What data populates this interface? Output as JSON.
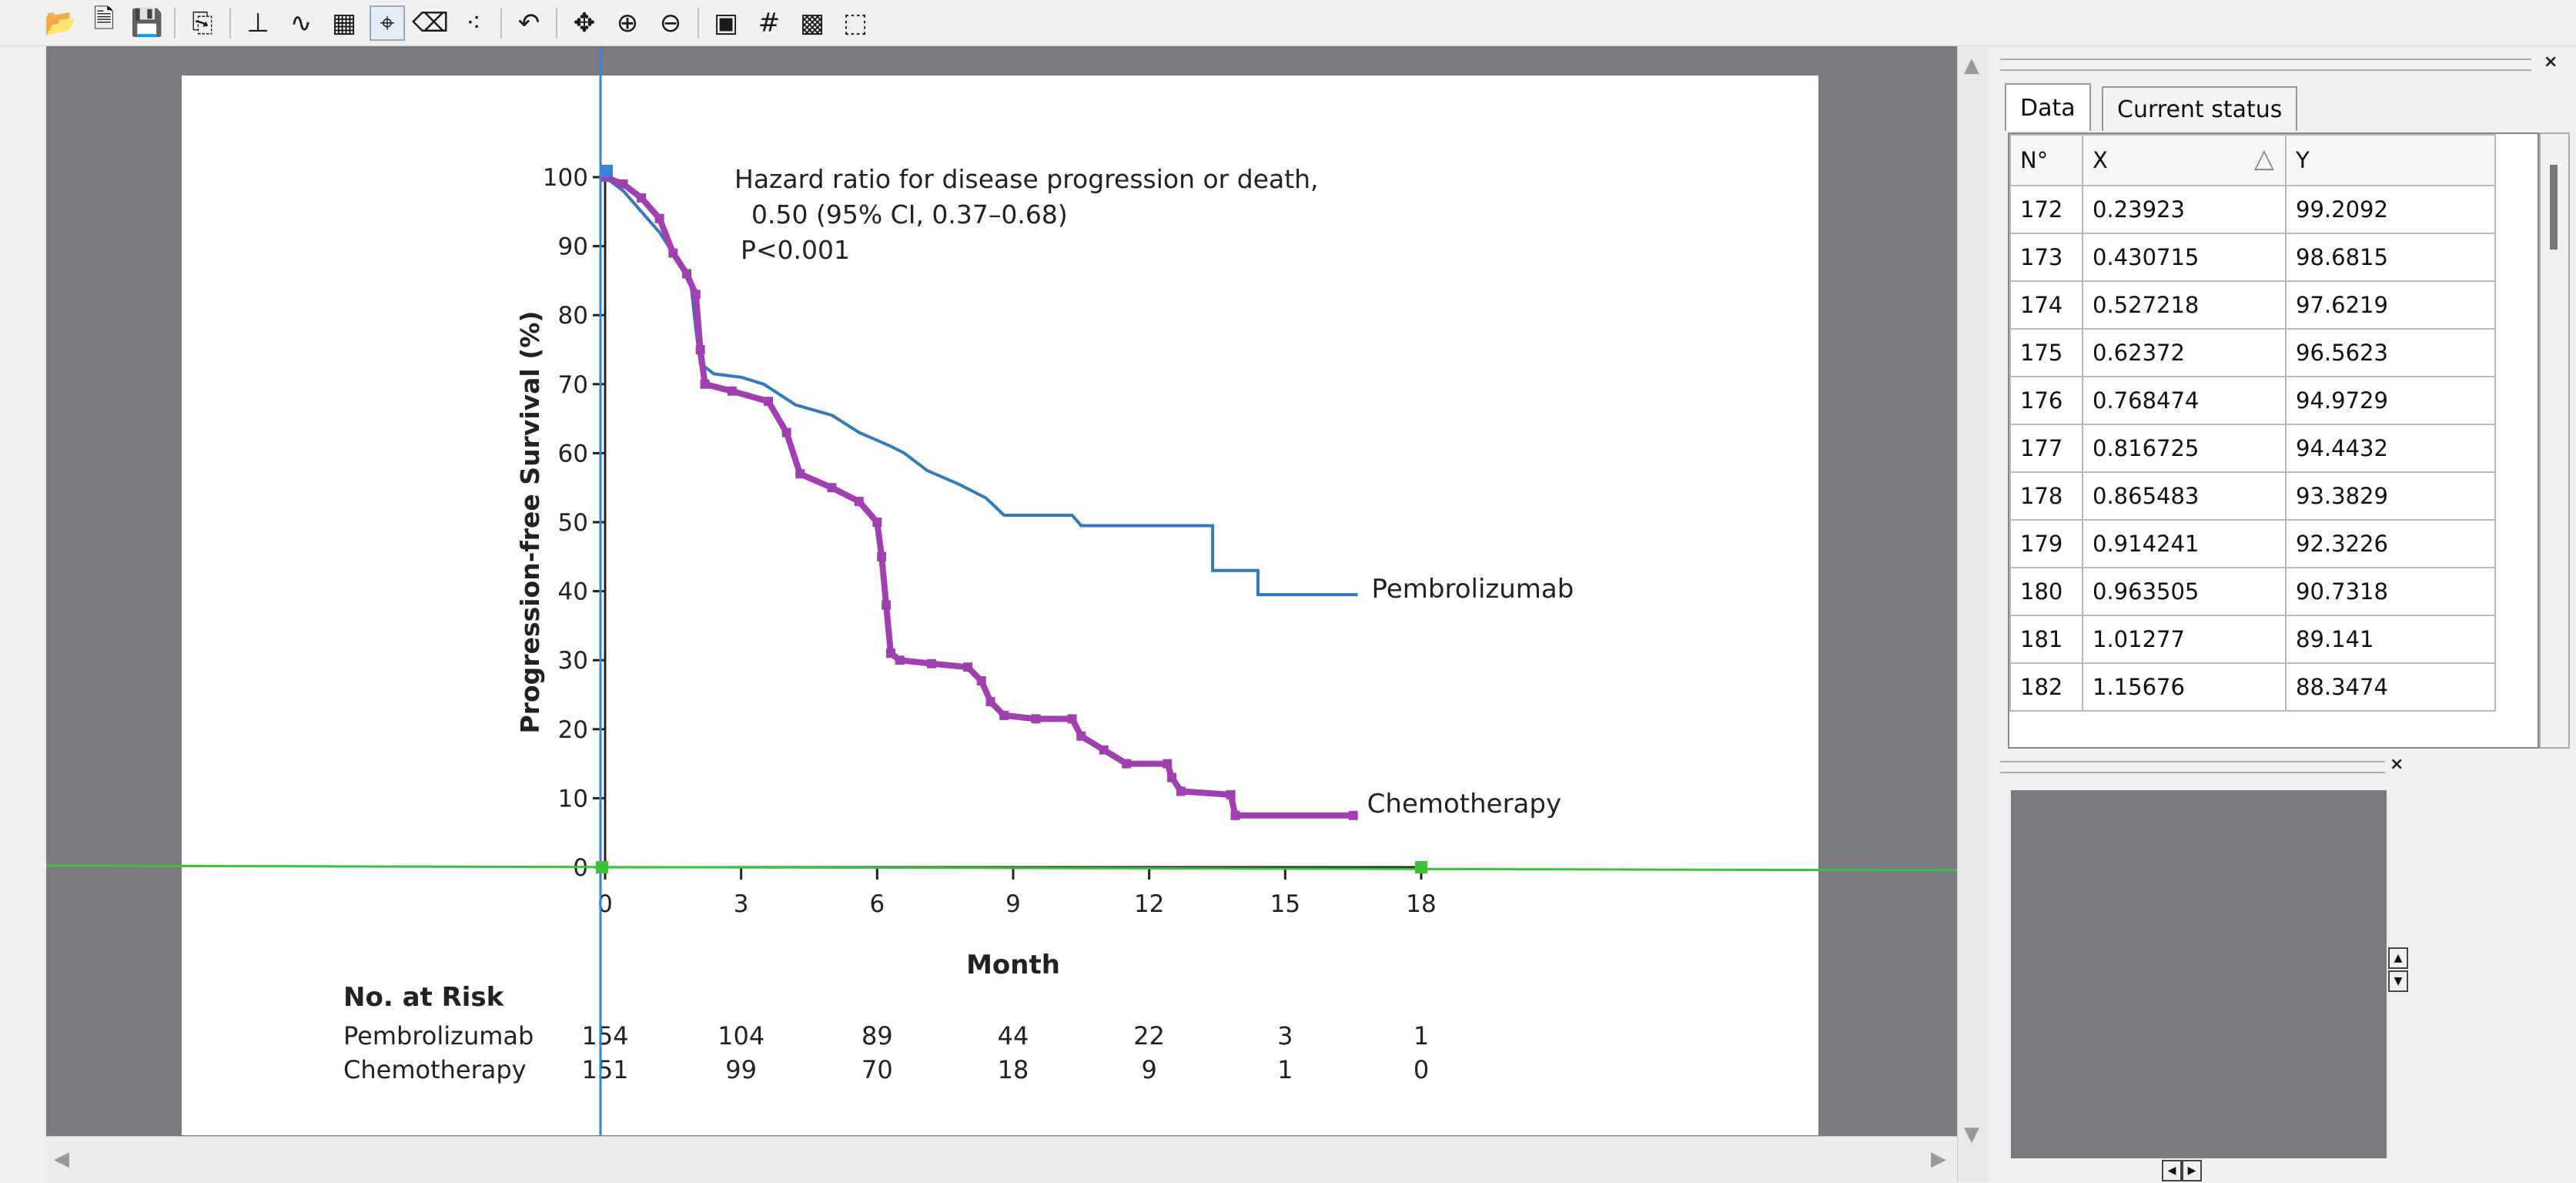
{
  "toolbar": {
    "buttons": [
      {
        "name": "open-icon",
        "glyph": "📂"
      },
      {
        "name": "import-icon",
        "glyph": "🗎"
      },
      {
        "name": "save-icon",
        "glyph": "💾"
      },
      {
        "name": "copy-icon",
        "glyph": "⎘"
      },
      {
        "name": "axes-icon",
        "glyph": "⊥"
      },
      {
        "name": "curve-icon",
        "glyph": "∿"
      },
      {
        "name": "grid-fill-icon",
        "glyph": "▦"
      },
      {
        "name": "point-select-icon",
        "glyph": "⌖"
      },
      {
        "name": "eraser-icon",
        "glyph": "⌫"
      },
      {
        "name": "points-icon",
        "glyph": "⁖"
      },
      {
        "name": "undo-icon",
        "glyph": "↶"
      },
      {
        "name": "pan-icon",
        "glyph": "✥"
      },
      {
        "name": "zoom-in-icon",
        "glyph": "⊕"
      },
      {
        "name": "zoom-out-icon",
        "glyph": "⊖"
      },
      {
        "name": "image-icon",
        "glyph": "▣"
      },
      {
        "name": "grid-icon",
        "glyph": "#"
      },
      {
        "name": "color-icon",
        "glyph": "▩"
      },
      {
        "name": "chart-icon",
        "glyph": "⬚"
      }
    ]
  },
  "chart_data": {
    "type": "line",
    "ylabel": "Progression-free Survival (%)",
    "xlabel": "Month",
    "x_ticks": [
      0,
      3,
      6,
      9,
      12,
      15,
      18
    ],
    "y_ticks": [
      0,
      10,
      20,
      30,
      40,
      50,
      60,
      70,
      80,
      90,
      100
    ],
    "xlim": [
      0,
      18
    ],
    "ylim": [
      0,
      100
    ],
    "annotation": [
      "Hazard ratio for disease progression or death,",
      "0.50 (95% CI, 0.37–0.68)",
      "P<0.001"
    ],
    "series": [
      {
        "name": "Pembrolizumab",
        "color": "#2f7bbd",
        "points": [
          [
            0,
            100
          ],
          [
            0.4,
            98
          ],
          [
            0.8,
            95
          ],
          [
            1.2,
            92
          ],
          [
            1.6,
            88
          ],
          [
            1.9,
            84
          ],
          [
            2.0,
            78
          ],
          [
            2.1,
            73
          ],
          [
            2.4,
            71.5
          ],
          [
            3.0,
            71
          ],
          [
            3.5,
            70
          ],
          [
            4.2,
            67
          ],
          [
            5.0,
            65.5
          ],
          [
            5.6,
            63
          ],
          [
            6.3,
            61
          ],
          [
            6.6,
            60
          ],
          [
            7.1,
            57.5
          ],
          [
            7.8,
            55.5
          ],
          [
            8.4,
            53.5
          ],
          [
            8.8,
            51
          ],
          [
            10.3,
            51
          ],
          [
            10.5,
            49.5
          ],
          [
            13.4,
            49.5
          ],
          [
            13.4,
            43
          ],
          [
            14.4,
            43
          ],
          [
            14.4,
            39.5
          ],
          [
            16.6,
            39.5
          ]
        ]
      },
      {
        "name": "Chemotherapy",
        "color": "#a040b0",
        "points": [
          [
            0,
            100
          ],
          [
            0.4,
            99
          ],
          [
            0.8,
            97
          ],
          [
            1.2,
            94
          ],
          [
            1.5,
            89
          ],
          [
            1.8,
            86
          ],
          [
            2.0,
            83
          ],
          [
            2.1,
            75
          ],
          [
            2.2,
            70
          ],
          [
            2.8,
            69
          ],
          [
            3.6,
            67.5
          ],
          [
            4.0,
            63
          ],
          [
            4.3,
            57
          ],
          [
            5.0,
            55
          ],
          [
            5.6,
            53
          ],
          [
            6.0,
            50
          ],
          [
            6.1,
            45
          ],
          [
            6.2,
            38
          ],
          [
            6.3,
            31
          ],
          [
            6.5,
            30
          ],
          [
            7.2,
            29.5
          ],
          [
            8.0,
            29
          ],
          [
            8.3,
            27
          ],
          [
            8.5,
            24
          ],
          [
            8.8,
            22
          ],
          [
            9.5,
            21.5
          ],
          [
            10.3,
            21.5
          ],
          [
            10.5,
            19
          ],
          [
            11.0,
            17
          ],
          [
            11.5,
            15
          ],
          [
            12.4,
            15
          ],
          [
            12.5,
            13
          ],
          [
            12.7,
            11
          ],
          [
            13.8,
            10.5
          ],
          [
            13.9,
            7.5
          ],
          [
            16.5,
            7.5
          ]
        ]
      }
    ],
    "risk_table": {
      "title": "No. at Risk",
      "rows": [
        {
          "label": "Pembrolizumab",
          "values": [
            "154",
            "104",
            "89",
            "44",
            "22",
            "3",
            "1"
          ]
        },
        {
          "label": "Chemotherapy",
          "values": [
            "151",
            "99",
            "70",
            "18",
            "9",
            "1",
            "0"
          ]
        }
      ]
    }
  },
  "tabs": {
    "data": "Data",
    "status": "Current status"
  },
  "table": {
    "headers": {
      "n": "N°",
      "x": "X",
      "y": "Y"
    },
    "rows": [
      [
        "172",
        "0.23923",
        "99.2092"
      ],
      [
        "173",
        "0.430715",
        "98.6815"
      ],
      [
        "174",
        "0.527218",
        "97.6219"
      ],
      [
        "175",
        "0.62372",
        "96.5623"
      ],
      [
        "176",
        "0.768474",
        "94.9729"
      ],
      [
        "177",
        "0.816725",
        "94.4432"
      ],
      [
        "178",
        "0.865483",
        "93.3829"
      ],
      [
        "179",
        "0.914241",
        "92.3226"
      ],
      [
        "180",
        "0.963505",
        "90.7318"
      ],
      [
        "181",
        "1.01277",
        "89.141"
      ],
      [
        "182",
        "1.15676",
        "88.3474"
      ]
    ]
  },
  "panels": {
    "close_glyph": "×"
  }
}
